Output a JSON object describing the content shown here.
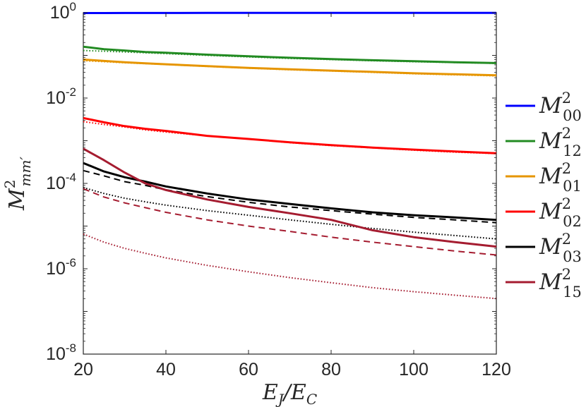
{
  "chart_data": {
    "type": "line",
    "xlabel": "E_J/E_C",
    "ylabel": "M^2_{mm'}",
    "x_axis_label_parts": {
      "base1": "E",
      "sub1": "J",
      "slash": "/",
      "base2": "E",
      "sub2": "C"
    },
    "y_axis_label_parts": {
      "base": "M",
      "sup": "2",
      "sub": "mm′"
    },
    "xlim": [
      20,
      120
    ],
    "ylim": [
      1e-08,
      1
    ],
    "yscale": "log",
    "grid": false,
    "legend_position": "right-outside",
    "x_ticks": [
      "20",
      "40",
      "60",
      "80",
      "100",
      "120"
    ],
    "y_ticks": [
      {
        "base": "10",
        "exp": "0",
        "value": 1
      },
      {
        "base": "10",
        "exp": "-2",
        "value": 0.01
      },
      {
        "base": "10",
        "exp": "-4",
        "value": 0.0001
      },
      {
        "base": "10",
        "exp": "-6",
        "value": 1e-06
      },
      {
        "base": "10",
        "exp": "-8",
        "value": 1e-08
      }
    ],
    "x": [
      20,
      25,
      30,
      35,
      40,
      50,
      60,
      70,
      80,
      90,
      100,
      110,
      120
    ],
    "series": [
      {
        "name": "M^2_00",
        "label_base": "M",
        "label_sup": "2",
        "label_sub": "00",
        "color": "#0000ff",
        "solid": [
          0.98,
          0.98,
          0.985,
          0.985,
          0.985,
          0.988,
          0.99,
          0.99,
          0.99,
          0.992,
          0.992,
          0.993,
          0.993
        ]
      },
      {
        "name": "M^2_12",
        "label_base": "M",
        "label_sup": "2",
        "label_sub": "12",
        "color": "#228b22",
        "solid": [
          0.16,
          0.14,
          0.13,
          0.12,
          0.115,
          0.104,
          0.095,
          0.088,
          0.082,
          0.077,
          0.073,
          0.069,
          0.066
        ],
        "dotted": [
          0.13,
          0.125,
          0.12,
          0.115,
          0.11,
          0.1,
          0.092,
          0.085,
          0.08,
          0.075,
          0.071,
          0.068,
          0.065
        ]
      },
      {
        "name": "M^2_01",
        "label_base": "M",
        "label_sup": "2",
        "label_sub": "01",
        "color": "#e69500",
        "solid": [
          0.08,
          0.074,
          0.069,
          0.065,
          0.062,
          0.056,
          0.051,
          0.047,
          0.044,
          0.041,
          0.038,
          0.036,
          0.034
        ],
        "dotted": [
          0.075,
          0.071,
          0.067,
          0.064,
          0.061,
          0.055,
          0.05,
          0.046,
          0.043,
          0.04,
          0.037,
          0.035,
          0.033
        ]
      },
      {
        "name": "M^2_02",
        "label_base": "M",
        "label_sup": "2",
        "label_sub": "02",
        "color": "#ff0000",
        "solid": [
          0.0034,
          0.0027,
          0.0022,
          0.0019,
          0.0017,
          0.0013,
          0.0011,
          0.00092,
          0.00079,
          0.00069,
          0.00062,
          0.00056,
          0.00051
        ],
        "dotted": [
          0.0028,
          0.0024,
          0.0021,
          0.0018,
          0.0016,
          0.0013,
          0.0011,
          0.0009,
          0.00077,
          0.00068,
          0.0006,
          0.00054,
          0.0005
        ]
      },
      {
        "name": "M^2_03",
        "label_base": "M",
        "label_sup": "2",
        "label_sub": "03",
        "color": "#000000",
        "solid": [
          0.0003,
          0.00019,
          0.00014,
          0.00011,
          8.5e-05,
          5.8e-05,
          4.2e-05,
          3.3e-05,
          2.6e-05,
          2.1e-05,
          1.8e-05,
          1.6e-05,
          1.4e-05
        ],
        "dashed": [
          0.0002,
          0.00015,
          0.00011,
          9e-05,
          7.1e-05,
          4.9e-05,
          3.6e-05,
          2.8e-05,
          2.3e-05,
          1.9e-05,
          1.6e-05,
          1.4e-05,
          1.2e-05
        ],
        "dotted": [
          8e-05,
          5.8e-05,
          4.5e-05,
          3.7e-05,
          3.1e-05,
          2.3e-05,
          1.8e-05,
          1.4e-05,
          1.1e-05,
          8.8e-06,
          7.2e-06,
          6e-06,
          5e-06
        ]
      },
      {
        "name": "M^2_15",
        "label_base": "M",
        "label_sup": "2",
        "label_sub": "15",
        "color": "#a51c30",
        "solid": [
          0.00065,
          0.00035,
          0.00018,
          0.0001,
          7e-05,
          4.2e-05,
          2.8e-05,
          2e-05,
          1.4e-05,
          8e-06,
          5.5e-06,
          4.2e-06,
          3.3e-06
        ],
        "dashed": [
          7.5e-05,
          4.8e-05,
          3.5e-05,
          2.7e-05,
          2.1e-05,
          1.4e-05,
          1e-05,
          7.5e-06,
          5.5e-06,
          4.2e-06,
          3.3e-06,
          2.6e-06,
          2.1e-06
        ],
        "dotted": [
          6.5e-06,
          4.2e-06,
          3e-06,
          2.3e-06,
          1.8e-06,
          1.2e-06,
          8.5e-07,
          6.2e-07,
          4.7e-07,
          3.6e-07,
          2.9e-07,
          2.4e-07,
          2e-07
        ]
      }
    ]
  }
}
